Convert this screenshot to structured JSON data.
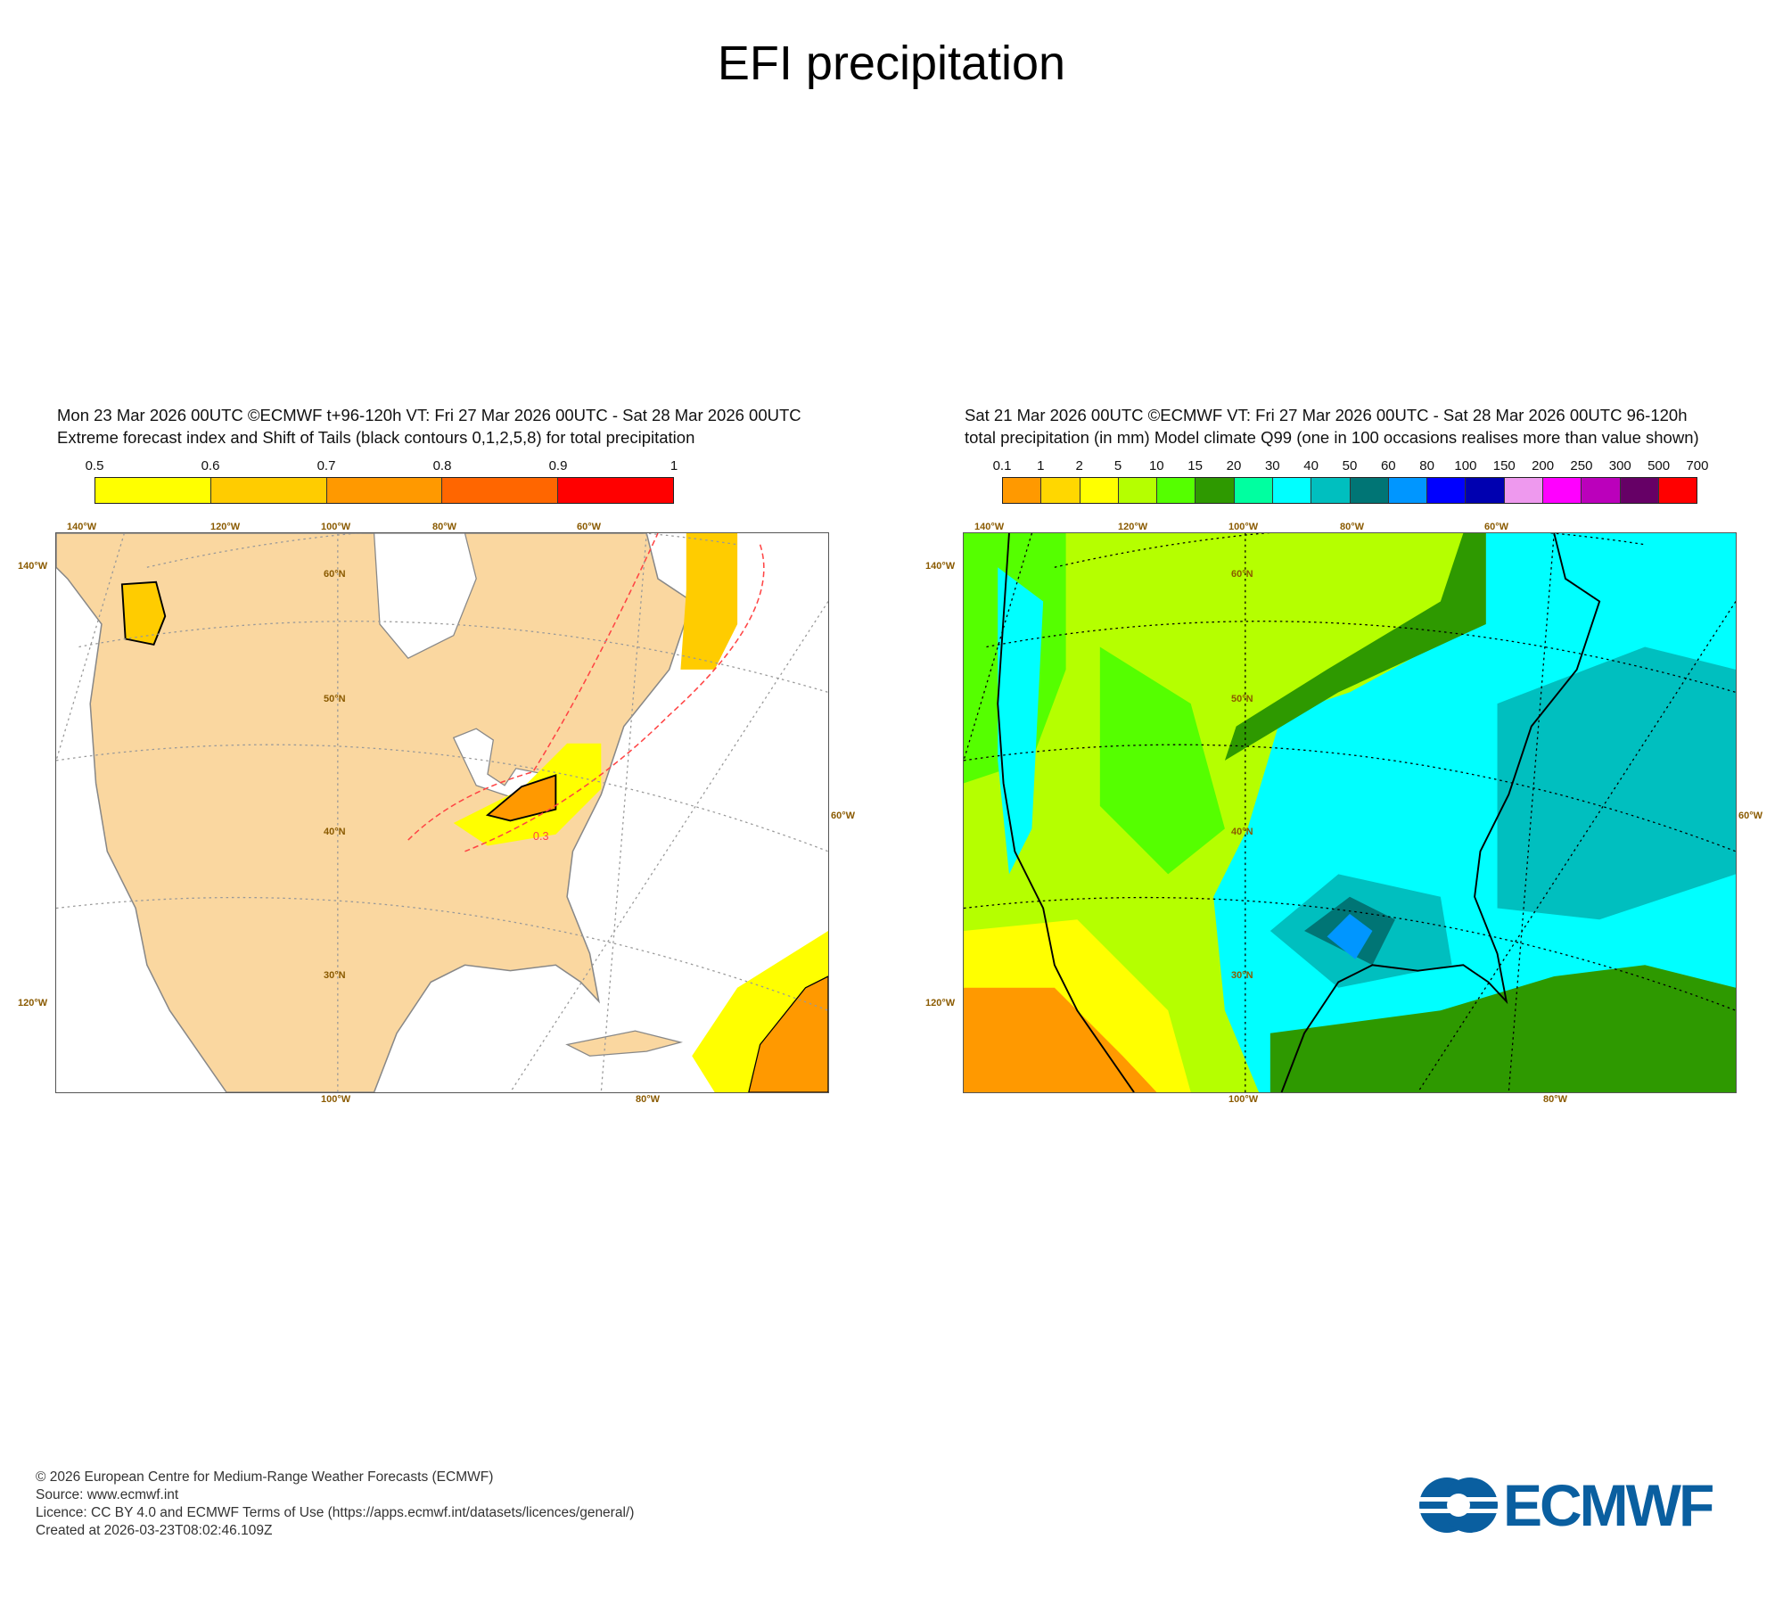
{
  "title": "EFI precipitation",
  "chart_data": [
    {
      "type": "heatmap",
      "name": "efi",
      "header_line1": "Mon 23 Mar 2026 00UTC ©ECMWF t+96-120h  VT: Fri 27 Mar 2026 00UTC - Sat 28 Mar 2026 00UTC",
      "header_line2": "Extreme forecast index and Shift of Tails (black contours 0,1,2,5,8) for total precipitation",
      "legend_ticks": [
        "0.5",
        "0.6",
        "0.7",
        "0.8",
        "0.9",
        "1"
      ],
      "legend_colors": [
        "#ffff00",
        "#ffcc00",
        "#ff9900",
        "#ff6600",
        "#ff0000"
      ],
      "contour_label": "0.3",
      "lon_labels_top": [
        "140°W",
        "120°W",
        "100°W",
        "80°W",
        "60°W"
      ],
      "lon_labels_bottom": [
        "100°W",
        "80°W"
      ],
      "lat_labels": [
        "60°N",
        "50°N",
        "40°N",
        "30°N"
      ],
      "side_labels": [
        "140°W",
        "120°W",
        "60°W"
      ]
    },
    {
      "type": "heatmap",
      "name": "model-climate-q99",
      "header_line1": "Sat 21 Mar 2026 00UTC ©ECMWF VT: Fri 27 Mar 2026 00UTC - Sat 28 Mar 2026 00UTC    96-120h",
      "header_line2": "total precipitation (in mm)  Model climate Q99 (one in 100 occasions realises more than value shown)",
      "legend_ticks": [
        "0.1",
        "1",
        "2",
        "5",
        "10",
        "15",
        "20",
        "30",
        "40",
        "50",
        "60",
        "80",
        "100",
        "150",
        "200",
        "250",
        "300",
        "500",
        "700"
      ],
      "legend_colors": [
        "#ff9900",
        "#ffd700",
        "#ffff00",
        "#b5ff00",
        "#55ff00",
        "#2e9900",
        "#00ffa0",
        "#00ffff",
        "#00bfbf",
        "#007575",
        "#0096ff",
        "#0000ff",
        "#0000b0",
        "#ee99ee",
        "#ff00ff",
        "#bb00bb",
        "#660066",
        "#ff0000"
      ],
      "lon_labels_top": [
        "140°W",
        "120°W",
        "100°W",
        "80°W",
        "60°W"
      ],
      "lon_labels_bottom": [
        "100°W",
        "80°W"
      ],
      "lat_labels": [
        "60°N",
        "50°N",
        "40°N",
        "30°N"
      ],
      "side_labels": [
        "140°W",
        "120°W",
        "60°W"
      ]
    }
  ],
  "footer": {
    "copyright": "© 2026 European Centre for Medium-Range Weather Forecasts (ECMWF)",
    "source": "Source: www.ecmwf.int",
    "licence": "Licence: CC BY 4.0 and ECMWF Terms of Use (https://apps.ecmwf.int/datasets/licences/general/)",
    "created": "Created at 2026-03-23T08:02:46.109Z"
  },
  "logo": {
    "text": "ECMWF",
    "color": "#0a5fa0"
  }
}
